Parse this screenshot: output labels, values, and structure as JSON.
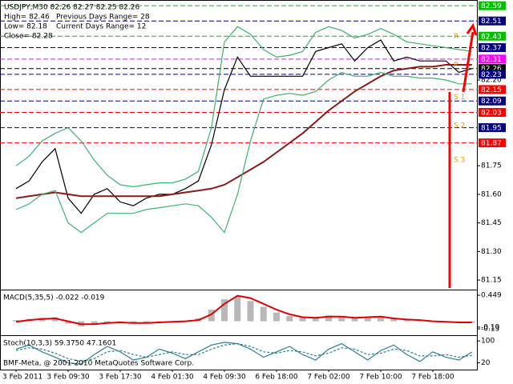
{
  "chart_data": [
    {
      "type": "line",
      "title": "USDJPY,M30  82.26 82.27 82.25 82.26",
      "info": [
        "High= 82.46",
        "Low= 82.18",
        "Close= 82.28"
      ],
      "ranges": [
        "Previous Days Range= 28",
        "Current Days Range= 12"
      ],
      "categories": [
        "3 Feb 2011",
        null,
        null,
        null,
        "3 Feb 09:30",
        null,
        null,
        null,
        "3 Feb 17:30",
        null,
        null,
        null,
        "4 Feb 01:30",
        null,
        null,
        null,
        "4 Feb 09:30",
        null,
        null,
        null,
        "6 Feb 18:00",
        null,
        null,
        null,
        "7 Feb 02:00",
        null,
        null,
        null,
        "7 Feb 10:00",
        null,
        null,
        null,
        "7 Feb 18:00",
        null,
        null,
        null
      ],
      "series": [
        {
          "color": "#000000",
          "values": [
            81.63,
            81.67,
            81.77,
            81.84,
            81.58,
            81.5,
            81.6,
            81.63,
            81.56,
            81.54,
            81.58,
            81.6,
            81.6,
            81.63,
            81.67,
            81.86,
            82.15,
            82.32,
            82.22,
            82.22,
            82.22,
            82.22,
            82.22,
            82.35,
            82.37,
            82.39,
            82.3,
            82.37,
            82.41,
            82.3,
            82.32,
            82.3,
            82.3,
            82.3,
            82.24,
            82.26
          ]
        },
        {
          "color": "#8b1a1a",
          "values": [
            81.58,
            81.59,
            81.6,
            81.61,
            81.6,
            81.59,
            81.59,
            81.59,
            81.59,
            81.59,
            81.59,
            81.59,
            81.6,
            81.61,
            81.62,
            81.63,
            81.65,
            81.69,
            81.73,
            81.77,
            81.82,
            81.87,
            81.92,
            81.98,
            82.04,
            82.09,
            82.14,
            82.18,
            82.22,
            82.25,
            82.26,
            82.27,
            82.27,
            82.28,
            82.28,
            82.28
          ]
        },
        {
          "color": "#3cb371",
          "values": [
            81.75,
            81.8,
            81.88,
            81.92,
            81.95,
            81.88,
            81.78,
            81.7,
            81.65,
            81.64,
            81.65,
            81.66,
            81.66,
            81.68,
            81.72,
            81.95,
            82.4,
            82.48,
            82.44,
            82.36,
            82.32,
            82.33,
            82.35,
            82.45,
            82.48,
            82.46,
            82.42,
            82.44,
            82.47,
            82.44,
            82.4,
            82.39,
            82.38,
            82.37,
            82.36,
            82.35
          ]
        },
        {
          "color": "#3cb371",
          "values": [
            81.52,
            81.55,
            81.6,
            81.62,
            81.45,
            81.4,
            81.45,
            81.5,
            81.5,
            81.5,
            81.52,
            81.53,
            81.54,
            81.55,
            81.54,
            81.48,
            81.4,
            81.6,
            81.88,
            82.1,
            82.12,
            82.13,
            82.12,
            82.14,
            82.2,
            82.24,
            82.22,
            82.22,
            82.24,
            82.22,
            82.22,
            82.21,
            82.21,
            82.2,
            82.18,
            82.18
          ]
        }
      ],
      "levels": [
        {
          "value": 82.59,
          "color": "#00c000"
        },
        {
          "value": 82.51,
          "color": "#000080"
        },
        {
          "value": 82.43,
          "color": "#00c000"
        },
        {
          "value": 82.37,
          "color": "#000080"
        },
        {
          "value": 82.31,
          "color": "#ff00ff"
        },
        {
          "value": 82.26,
          "color": "#000000"
        },
        {
          "value": 82.23,
          "color": "#000080"
        },
        {
          "value": 82.15,
          "color": "#ff0000"
        },
        {
          "value": 82.09,
          "color": "#000080"
        },
        {
          "value": 82.03,
          "color": "#ff0000"
        },
        {
          "value": 81.95,
          "color": "#000080"
        },
        {
          "value": 81.87,
          "color": "#ff0000"
        }
      ],
      "pivots": [
        {
          "label": "R",
          "value": 82.43
        },
        {
          "label": "P",
          "value": 82.28
        },
        {
          "label": "S 1",
          "value": 82.11
        },
        {
          "label": "S 2",
          "value": 81.96
        },
        {
          "label": "S 3",
          "value": 81.78
        }
      ],
      "ylim": [
        81.1,
        82.62
      ],
      "yticks": [
        81.15,
        {
          "value": 81.3,
          "label": "81.30"
        },
        81.45,
        {
          "value": 81.6,
          "label": "81.60"
        },
        81.75,
        {
          "value": 82.2,
          "label": "82.20"
        }
      ]
    },
    {
      "type": "macd",
      "title": "MACD(5,35,5) -0.022 -0.019",
      "series": [
        {
          "type": "bar",
          "color": "#b8b8b8",
          "values": [
            0.02,
            0.04,
            0.06,
            0.07,
            -0.04,
            -0.09,
            -0.06,
            -0.03,
            -0.02,
            -0.04,
            -0.03,
            -0.02,
            0.0,
            0.01,
            0.05,
            0.2,
            0.38,
            0.42,
            0.35,
            0.25,
            0.15,
            0.09,
            0.06,
            0.07,
            0.1,
            0.09,
            0.06,
            0.08,
            0.09,
            0.05,
            0.03,
            0.01,
            -0.01,
            -0.02,
            -0.03,
            -0.022
          ]
        },
        {
          "type": "line",
          "color": "#e00000",
          "values": [
            -0.01,
            0.02,
            0.04,
            0.05,
            0.0,
            -0.05,
            -0.05,
            -0.03,
            -0.02,
            -0.03,
            -0.03,
            -0.02,
            -0.01,
            0.0,
            0.02,
            0.12,
            0.3,
            0.44,
            0.4,
            0.3,
            0.2,
            0.12,
            0.07,
            0.06,
            0.08,
            0.08,
            0.06,
            0.07,
            0.08,
            0.05,
            0.03,
            0.02,
            0.0,
            -0.01,
            -0.02,
            -0.019
          ]
        }
      ],
      "ylim": [
        -0.24,
        0.532
      ],
      "yticks": [
        0.449,
        {
          "value": -0.1,
          "label": "-0.10"
        },
        -0.13
      ]
    },
    {
      "type": "stoch",
      "title": "Stoch(10,3,3) 59.3750 47.1601",
      "annotation": "BMF-Meta, @ 2001-2010 MetaQuotes Software Corp.",
      "series": [
        {
          "color": "#2f7f8f",
          "dash": false,
          "values": [
            70,
            85,
            60,
            40,
            20,
            15,
            50,
            80,
            60,
            30,
            40,
            70,
            55,
            35,
            60,
            85,
            95,
            90,
            70,
            40,
            60,
            80,
            50,
            30,
            70,
            90,
            60,
            30,
            65,
            85,
            50,
            25,
            60,
            40,
            30,
            59.375
          ]
        },
        {
          "color": "#2f7f8f",
          "dash": true,
          "values": [
            65,
            75,
            70,
            55,
            35,
            25,
            35,
            60,
            65,
            50,
            40,
            50,
            60,
            50,
            50,
            70,
            85,
            90,
            80,
            60,
            55,
            65,
            60,
            45,
            55,
            75,
            70,
            50,
            55,
            70,
            65,
            45,
            45,
            50,
            40,
            47.1601
          ]
        }
      ],
      "ylim": [
        -5,
        118
      ],
      "yticks": [
        100,
        20
      ]
    }
  ]
}
